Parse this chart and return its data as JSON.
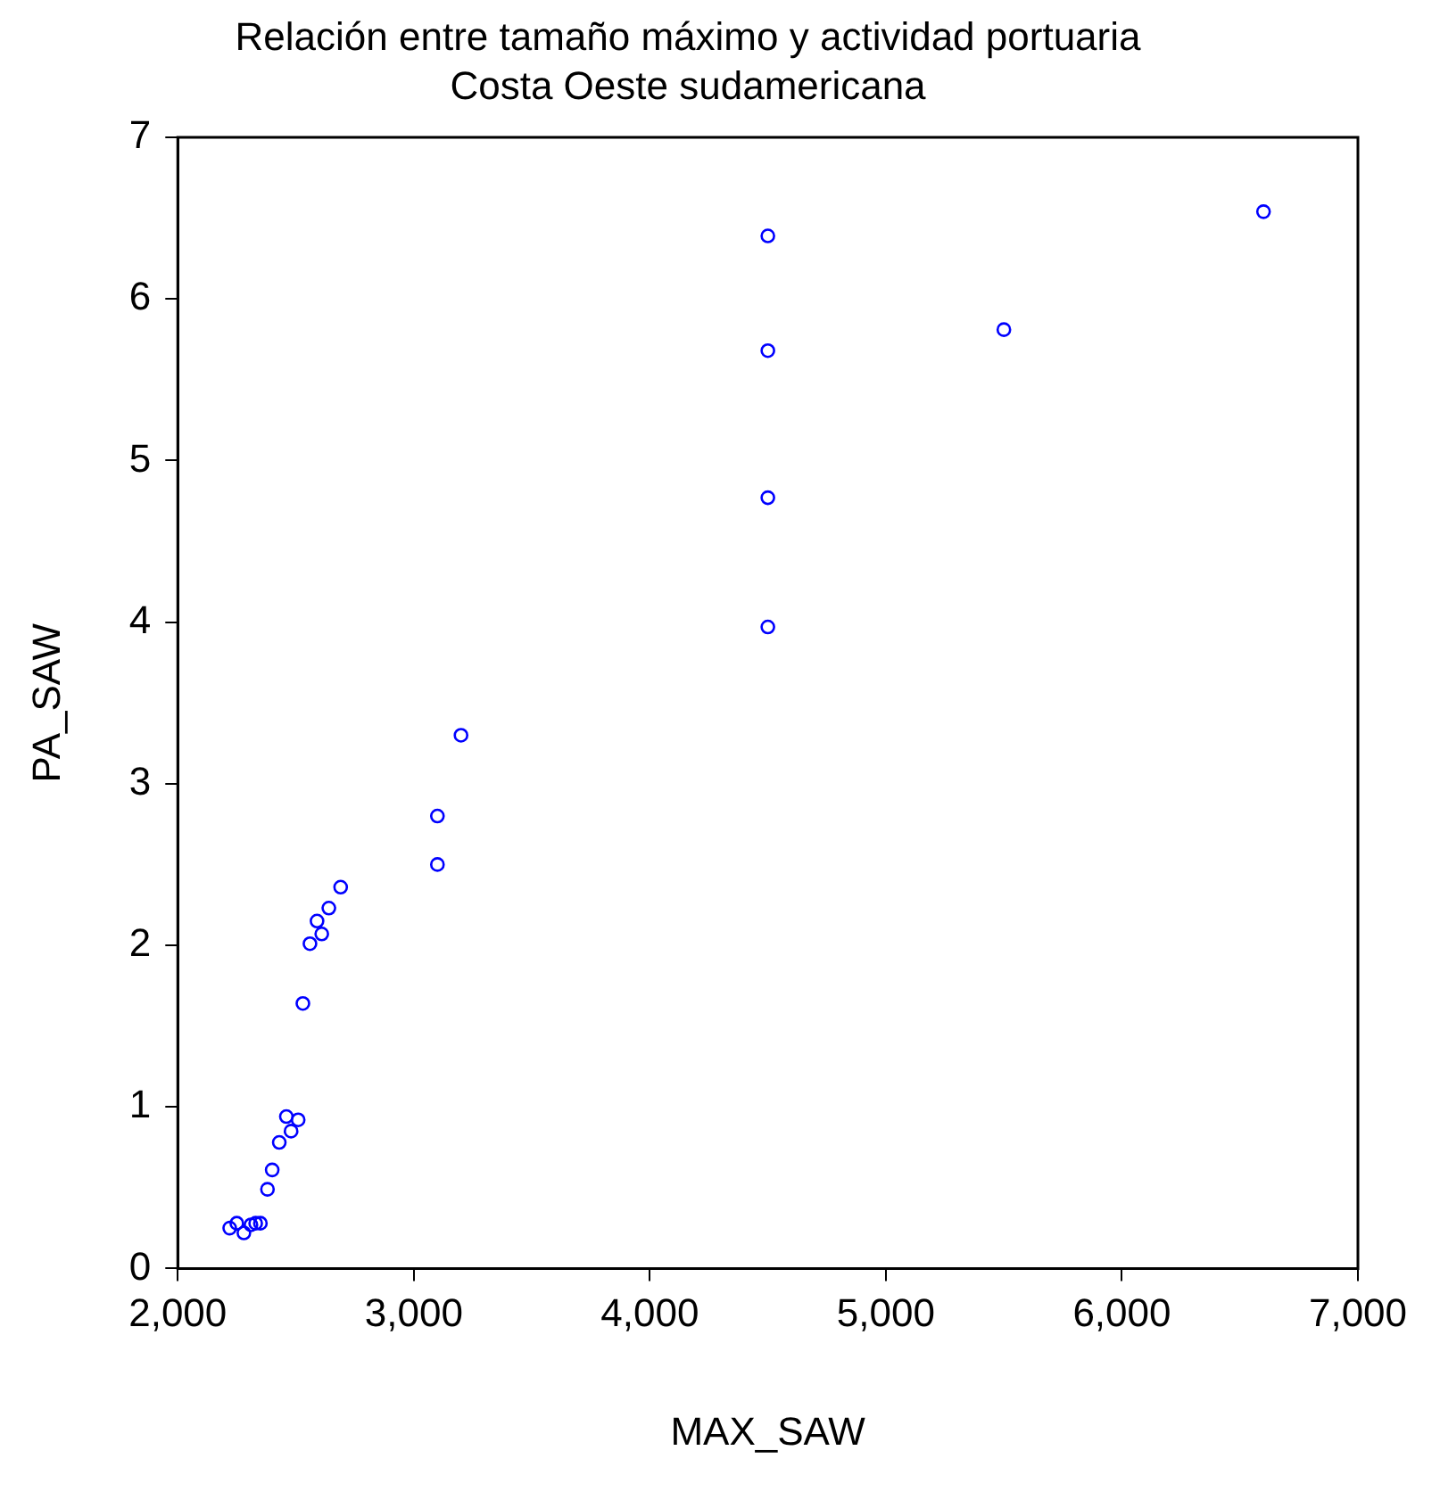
{
  "chart_data": {
    "type": "scatter",
    "title": "Relación entre tamaño máximo y actividad portuaria",
    "subtitle": "Costa Oeste sudamericana",
    "xlabel": "MAX_SAW",
    "ylabel": "PA_SAW",
    "x": [
      2220,
      2250,
      2280,
      2310,
      2330,
      2350,
      2380,
      2400,
      2430,
      2460,
      2480,
      2510,
      2530,
      2560,
      2610,
      2590,
      2640,
      2690,
      3100,
      3100,
      3200,
      4500,
      4500,
      4500,
      4500,
      5500,
      6600
    ],
    "series": [
      {
        "color": "#0000ff",
        "values": [
          0.25,
          0.28,
          0.22,
          0.27,
          0.28,
          0.28,
          0.49,
          0.61,
          0.78,
          0.94,
          0.85,
          0.92,
          1.64,
          2.01,
          2.07,
          2.15,
          2.23,
          2.36,
          2.5,
          2.8,
          3.3,
          3.97,
          4.77,
          5.68,
          6.39,
          5.81,
          6.54
        ]
      }
    ],
    "xlim": [
      2000,
      7000
    ],
    "xticks": [
      {
        "value": 2000,
        "label": "2,000"
      },
      {
        "value": 3000,
        "label": "3,000"
      },
      {
        "value": 4000,
        "label": "4,000"
      },
      {
        "value": 5000,
        "label": "5,000"
      },
      {
        "value": 6000,
        "label": "6,000"
      },
      {
        "value": 7000,
        "label": "7,000"
      }
    ],
    "ylim": [
      0,
      7
    ],
    "yticks": [
      0,
      1,
      2,
      3,
      4,
      5,
      6,
      7
    ],
    "grid": false,
    "legend": false,
    "marker": "circle"
  }
}
